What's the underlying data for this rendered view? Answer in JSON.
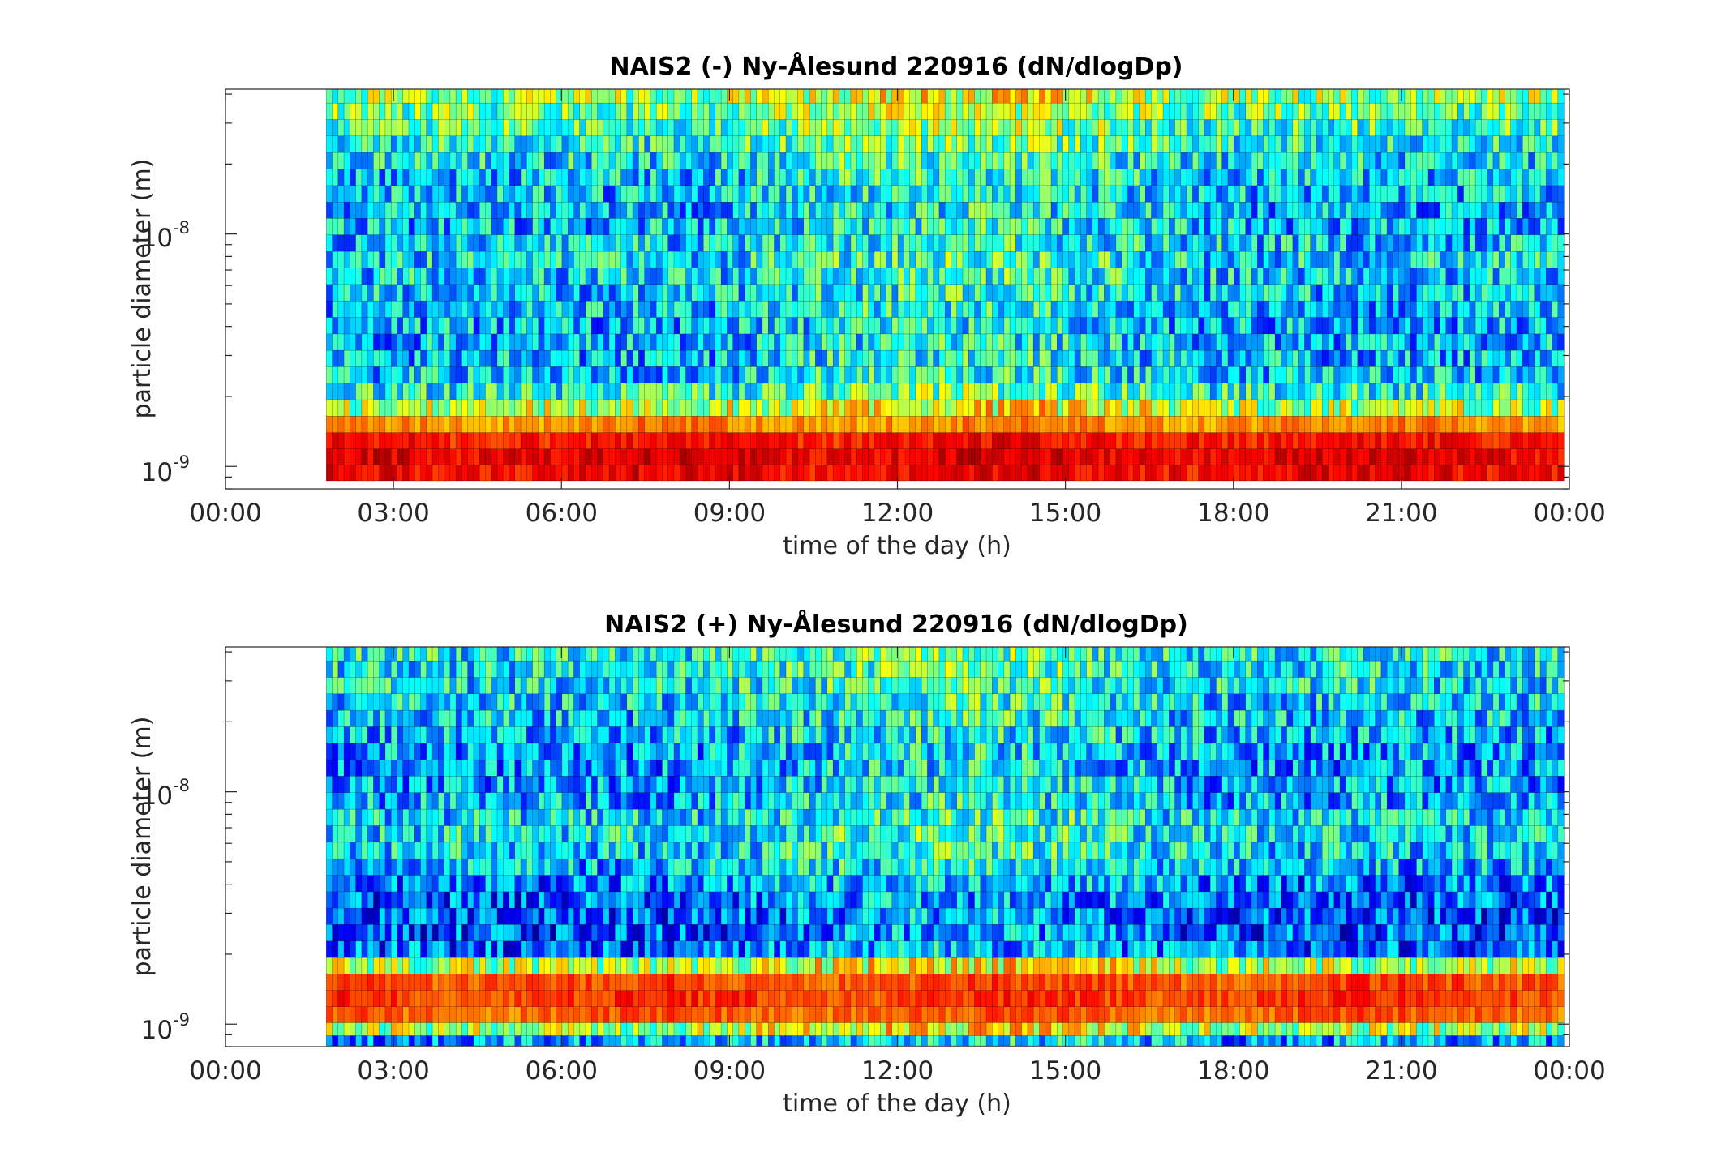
{
  "chart_data": [
    {
      "type": "heatmap",
      "title": "NAIS2 (-) Ny-Ålesund 220916 (dN/dlogDp)",
      "xlabel": "time of the day (h)",
      "ylabel": "particle diameter (m)",
      "xlim": [
        0,
        24
      ],
      "ylim": [
        8e-10,
        4.2e-08
      ],
      "yscale": "log",
      "xticks": [
        "00:00",
        "03:00",
        "06:00",
        "09:00",
        "12:00",
        "15:00",
        "18:00",
        "21:00",
        "00:00"
      ],
      "yticks": [
        {
          "base": "10",
          "exp": "-9"
        },
        {
          "base": "10",
          "exp": "-8"
        }
      ],
      "data_start_hour": 1.8,
      "data_end_hour": 23.9,
      "colormap": "jet",
      "size_bins_m": [
        9.4e-10,
        1.1e-09,
        1.29e-09,
        1.52e-09,
        1.79e-09,
        2.1e-09,
        2.48e-09,
        2.92e-09,
        3.43e-09,
        4.04e-09,
        4.76e-09,
        5.6e-09,
        6.6e-09,
        7.77e-09,
        9.15e-09,
        1.08e-08,
        1.27e-08,
        1.49e-08,
        1.76e-08,
        2.07e-08,
        2.44e-08,
        2.87e-08,
        3.38e-08,
        3.98e-08
      ],
      "level_by_bin_0to1": [
        0.88,
        0.9,
        0.86,
        0.74,
        0.55,
        0.4,
        0.32,
        0.31,
        0.3,
        0.3,
        0.31,
        0.32,
        0.34,
        0.35,
        0.33,
        0.31,
        0.3,
        0.31,
        0.33,
        0.36,
        0.4,
        0.44,
        0.48,
        0.52
      ]
    },
    {
      "type": "heatmap",
      "title": "NAIS2 (+) Ny-Ålesund 220916 (dN/dlogDp)",
      "xlabel": "time of the day (h)",
      "ylabel": "particle diameter (m)",
      "xlim": [
        0,
        24
      ],
      "ylim": [
        8e-10,
        4.2e-08
      ],
      "yscale": "log",
      "xticks": [
        "00:00",
        "03:00",
        "06:00",
        "09:00",
        "12:00",
        "15:00",
        "18:00",
        "21:00",
        "00:00"
      ],
      "yticks": [
        {
          "base": "10",
          "exp": "-9"
        },
        {
          "base": "10",
          "exp": "-8"
        }
      ],
      "data_start_hour": 1.8,
      "data_end_hour": 23.9,
      "colormap": "jet",
      "size_bins_m": [
        8.5e-10,
        9.4e-10,
        1.1e-09,
        1.29e-09,
        1.52e-09,
        1.79e-09,
        2.1e-09,
        2.48e-09,
        2.92e-09,
        3.43e-09,
        4.04e-09,
        4.76e-09,
        5.6e-09,
        6.6e-09,
        7.77e-09,
        9.15e-09,
        1.08e-08,
        1.27e-08,
        1.49e-08,
        1.76e-08,
        2.07e-08,
        2.44e-08,
        2.87e-08,
        3.38e-08,
        3.98e-08
      ],
      "level_by_bin_0to1": [
        0.28,
        0.55,
        0.78,
        0.82,
        0.8,
        0.55,
        0.22,
        0.2,
        0.2,
        0.21,
        0.24,
        0.3,
        0.34,
        0.36,
        0.34,
        0.3,
        0.28,
        0.27,
        0.28,
        0.3,
        0.32,
        0.34,
        0.36,
        0.37,
        0.38
      ]
    }
  ]
}
